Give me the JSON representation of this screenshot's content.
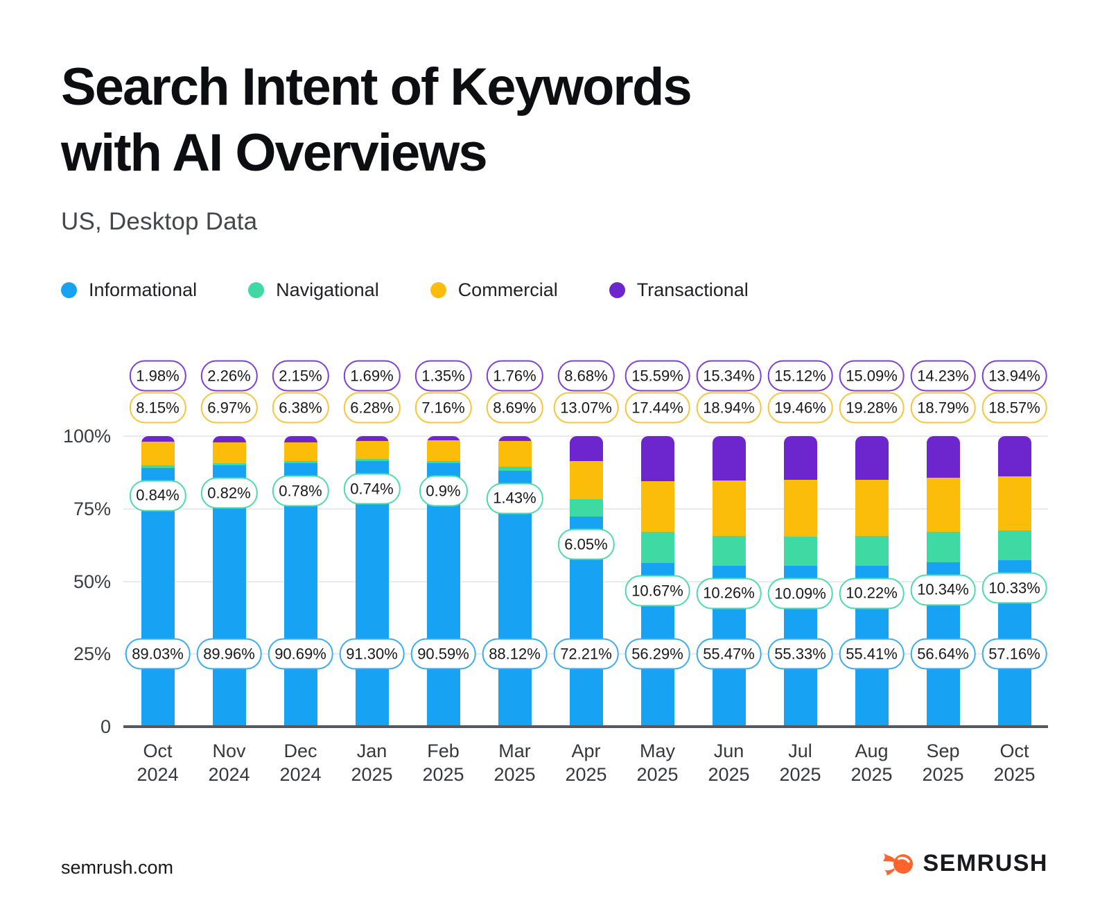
{
  "title": {
    "line1": "Search Intent of Keywords",
    "line2": "with AI Overviews"
  },
  "subtitle": "US, Desktop Data",
  "footer": {
    "site": "semrush.com",
    "brand": "SEMRUSH",
    "brand_color": "#ff642d"
  },
  "chart_data": {
    "type": "bar",
    "stacked": true,
    "unit": "%",
    "title": "Search Intent of Keywords with AI Overviews",
    "subtitle": "US, Desktop Data",
    "grid": true,
    "legend_position": "top",
    "ylim": [
      0,
      100
    ],
    "y_ticks": [
      {
        "pct": 100,
        "label": "100%"
      },
      {
        "pct": 75,
        "label": "75%"
      },
      {
        "pct": 50,
        "label": "50%"
      },
      {
        "pct": 25,
        "label": "25%"
      },
      {
        "pct": 0,
        "label": "0"
      }
    ],
    "categories": [
      "Oct 2024",
      "Nov 2024",
      "Dec 2024",
      "Jan 2025",
      "Feb 2025",
      "Mar 2025",
      "Apr 2025",
      "May 2025",
      "Jun 2025",
      "Jul 2025",
      "Aug 2025",
      "Sep 2025",
      "Oct 2025"
    ],
    "series": [
      {
        "name": "Informational",
        "color": "#18a2f4",
        "pill_border": "#3bacf2",
        "values": [
          89.03,
          89.96,
          90.69,
          91.3,
          90.59,
          88.12,
          72.21,
          56.29,
          55.47,
          55.33,
          55.41,
          56.64,
          57.16
        ],
        "labels": [
          "89.03%",
          "89.96%",
          "90.69%",
          "91.30%",
          "90.59%",
          "88.12%",
          "72.21%",
          "56.29%",
          "55.47%",
          "55.33%",
          "55.41%",
          "56.64%",
          "57.16%"
        ]
      },
      {
        "name": "Navigational",
        "color": "#3fd9a3",
        "pill_border": "#4cdca9",
        "values": [
          0.84,
          0.82,
          0.78,
          0.74,
          0.9,
          1.43,
          6.05,
          10.67,
          10.26,
          10.09,
          10.22,
          10.34,
          10.33
        ],
        "labels": [
          "0.84%",
          "0.82%",
          "0.78%",
          "0.74%",
          "0.9%",
          "1.43%",
          "6.05%",
          "10.67%",
          "10.26%",
          "10.09%",
          "10.22%",
          "10.34%",
          "10.33%"
        ]
      },
      {
        "name": "Commercial",
        "color": "#fbbd0a",
        "pill_border": "#f9c43c",
        "values": [
          8.15,
          6.97,
          6.38,
          6.28,
          7.16,
          8.69,
          13.07,
          17.44,
          18.94,
          19.46,
          19.28,
          18.79,
          18.57
        ],
        "labels": [
          "8.15%",
          "6.97%",
          "6.38%",
          "6.28%",
          "7.16%",
          "8.69%",
          "13.07%",
          "17.44%",
          "18.94%",
          "19.46%",
          "19.28%",
          "18.79%",
          "18.57%"
        ]
      },
      {
        "name": "Transactional",
        "color": "#6d26cd",
        "pill_border": "#7d3edb",
        "values": [
          1.98,
          2.26,
          2.15,
          1.69,
          1.35,
          1.76,
          8.68,
          15.59,
          15.34,
          15.12,
          15.09,
          14.23,
          13.94
        ],
        "labels": [
          "1.98%",
          "2.26%",
          "2.15%",
          "1.69%",
          "1.35%",
          "1.76%",
          "8.68%",
          "15.59%",
          "15.34%",
          "15.12%",
          "15.09%",
          "14.23%",
          "13.94%"
        ]
      }
    ]
  }
}
